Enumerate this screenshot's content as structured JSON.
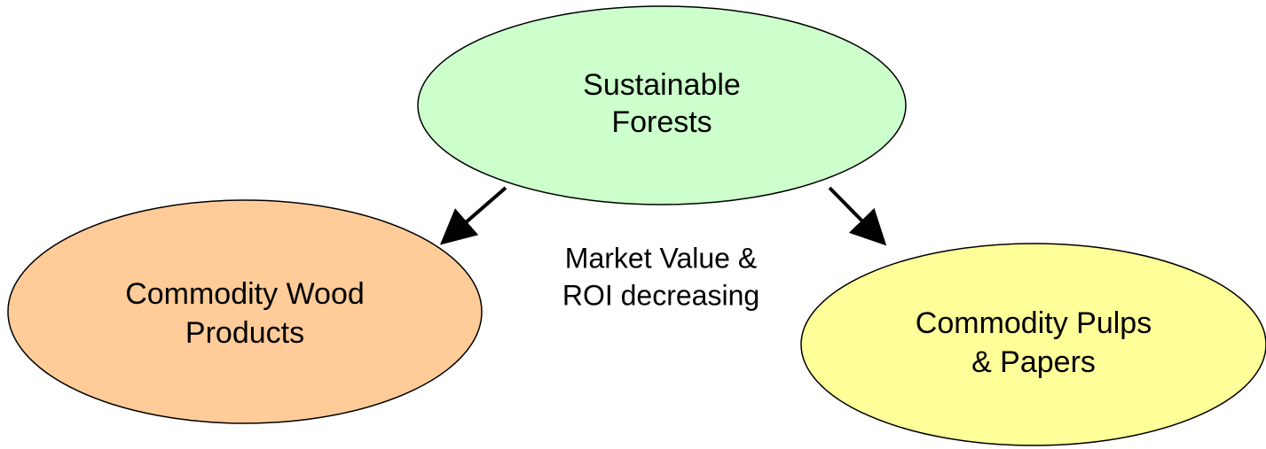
{
  "nodes": [
    {
      "label": [
        "Sustainable",
        "Forests"
      ]
    },
    {
      "label": [
        "Commodity Wood",
        "Products"
      ]
    },
    {
      "label": [
        "Commodity Pulps",
        "& Papers"
      ]
    }
  ],
  "annotation": [
    "Market Value &",
    "ROI decreasing"
  ]
}
